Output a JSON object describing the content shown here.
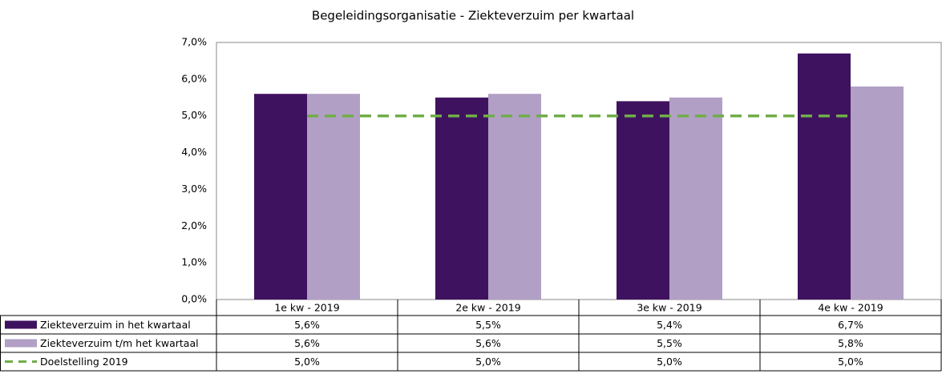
{
  "chart_data": {
    "type": "bar",
    "title": "Begeleidingsorganisatie - Ziekteverzuim per kwartaal",
    "categories": [
      "1e kw - 2019",
      "2e kw - 2019",
      "3e kw - 2019",
      "4e kw - 2019"
    ],
    "series": [
      {
        "name": "Ziekteverzuim in het kwartaal",
        "color": "#3f1260",
        "values": [
          5.6,
          5.5,
          5.4,
          6.7
        ],
        "value_labels": [
          "5,6%",
          "5,5%",
          "5,4%",
          "6,7%"
        ]
      },
      {
        "name": "Ziekteverzuim t/m het kwartaal",
        "color": "#b19fc5",
        "values": [
          5.6,
          5.6,
          5.5,
          5.8
        ],
        "value_labels": [
          "5,6%",
          "5,6%",
          "5,5%",
          "5,8%"
        ]
      },
      {
        "name": "Doelstelling 2019",
        "color": "#70ad47",
        "type": "line",
        "dashed": true,
        "values": [
          5.0,
          5.0,
          5.0,
          5.0
        ],
        "value_labels": [
          "5,0%",
          "5,0%",
          "5,0%",
          "5,0%"
        ]
      }
    ],
    "ylim": [
      0,
      7
    ],
    "yticks": [
      {
        "value": 0,
        "label": "0,0%"
      },
      {
        "value": 1,
        "label": "1,0%"
      },
      {
        "value": 2,
        "label": "2,0%"
      },
      {
        "value": 3,
        "label": "3,0%"
      },
      {
        "value": 4,
        "label": "4,0%"
      },
      {
        "value": 5,
        "label": "5,0%"
      },
      {
        "value": 6,
        "label": "6,0%"
      },
      {
        "value": 7,
        "label": "7,0%"
      }
    ],
    "grid": false,
    "data_table": true
  }
}
